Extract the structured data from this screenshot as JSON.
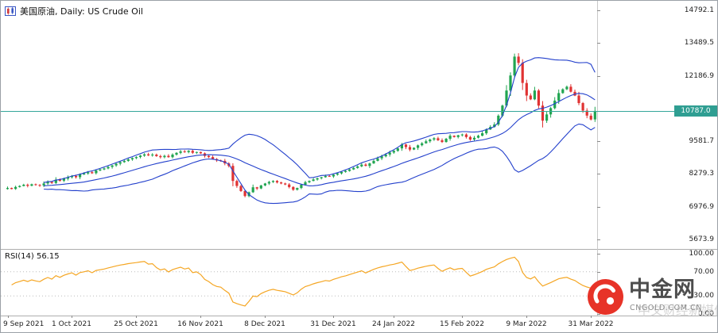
{
  "window": {
    "bg": "#ffffff",
    "border_color": "#9aa0a6"
  },
  "header": {
    "symbol_label": "美国原油, Daily: US Crude Oil",
    "icon": "candlestick-chart-icon"
  },
  "colors": {
    "candle_up": "#21a551",
    "candle_down": "#e03232",
    "bollinger": "#2340cc",
    "rsi_line": "#f5a623",
    "price_line": "#35a79b",
    "price_tag_bg": "#2f9e92",
    "watermark_red": "#e73328"
  },
  "price_tag": {
    "label": "10787.0"
  },
  "rsi_panel": {
    "label": "RSI(14) 56.15"
  },
  "watermark": {
    "title": "中金网",
    "url": "CNGOLD.COM.CN",
    "tagline": "中文财经新媒体"
  },
  "chart_data": {
    "type": "candlestick",
    "title": "美国原油, Daily: US Crude Oil",
    "timeframe": "Daily",
    "current_price": 10787.0,
    "price_axis": {
      "ticks": [
        14792.1,
        13489.5,
        12186.9,
        9581.7,
        8279.3,
        6976.9,
        5673.9
      ],
      "range_top": 15173,
      "range_bottom": 5293
    },
    "rsi_axis": {
      "ticks": [
        100,
        70,
        30,
        0
      ],
      "levels": [
        70,
        30
      ]
    },
    "time_axis": {
      "labels": [
        {
          "text": "9 Sep 2021",
          "index": 0
        },
        {
          "text": "1 Oct 2021",
          "index": 16
        },
        {
          "text": "25 Oct 2021",
          "index": 32
        },
        {
          "text": "16 Nov 2021",
          "index": 48
        },
        {
          "text": "8 Dec 2021",
          "index": 64
        },
        {
          "text": "31 Dec 2021",
          "index": 81
        },
        {
          "text": "24 Jan 2022",
          "index": 96
        },
        {
          "text": "15 Feb 2022",
          "index": 113
        },
        {
          "text": "9 Mar 2022",
          "index": 129
        },
        {
          "text": "31 Mar 2022",
          "index": 145
        }
      ]
    },
    "indicators": [
      {
        "name": "Bollinger Bands",
        "period": 20,
        "deviation": 2,
        "color": "#2340cc"
      },
      {
        "name": "RSI",
        "period": 14,
        "current": 56.15,
        "color": "#f5a623",
        "levels": [
          70,
          30
        ]
      }
    ],
    "series": [
      {
        "name": "close",
        "values": [
          7720,
          7680,
          7760,
          7800,
          7850,
          7810,
          7870,
          7840,
          7820,
          7900,
          7960,
          7920,
          8050,
          8010,
          8090,
          8150,
          8200,
          8150,
          8260,
          8300,
          8350,
          8310,
          8420,
          8460,
          8500,
          8560,
          8620,
          8690,
          8750,
          8800,
          8860,
          8910,
          8950,
          9010,
          9060,
          9020,
          9050,
          8990,
          8950,
          9000,
          8950,
          9050,
          9120,
          9180,
          9150,
          9200,
          9120,
          9150,
          9100,
          9000,
          8950,
          8870,
          8820,
          8800,
          8700,
          8600,
          8000,
          7800,
          7600,
          7400,
          7550,
          7750,
          7700,
          7820,
          7900,
          7960,
          8000,
          7940,
          7900,
          7860,
          7760,
          7650,
          7720,
          7850,
          7950,
          8000,
          8060,
          8110,
          8150,
          8200,
          8180,
          8250,
          8300,
          8360,
          8400,
          8460,
          8520,
          8580,
          8650,
          8600,
          8700,
          8800,
          8900,
          8980,
          9050,
          9130,
          9200,
          9300,
          9450,
          9350,
          9250,
          9320,
          9420,
          9500,
          9580,
          9650,
          9700,
          9620,
          9550,
          9680,
          9800,
          9750,
          9820,
          9850,
          9750,
          9650,
          9720,
          9800,
          9900,
          10050,
          10150,
          10250,
          10600,
          11000,
          11600,
          12200,
          12950,
          12700,
          11900,
          11400,
          11250,
          11600,
          11000,
          10400,
          10650,
          10900,
          11200,
          11500,
          11650,
          11750,
          11550,
          11400,
          11100,
          10800,
          10600,
          10450,
          10787
        ]
      }
    ]
  }
}
